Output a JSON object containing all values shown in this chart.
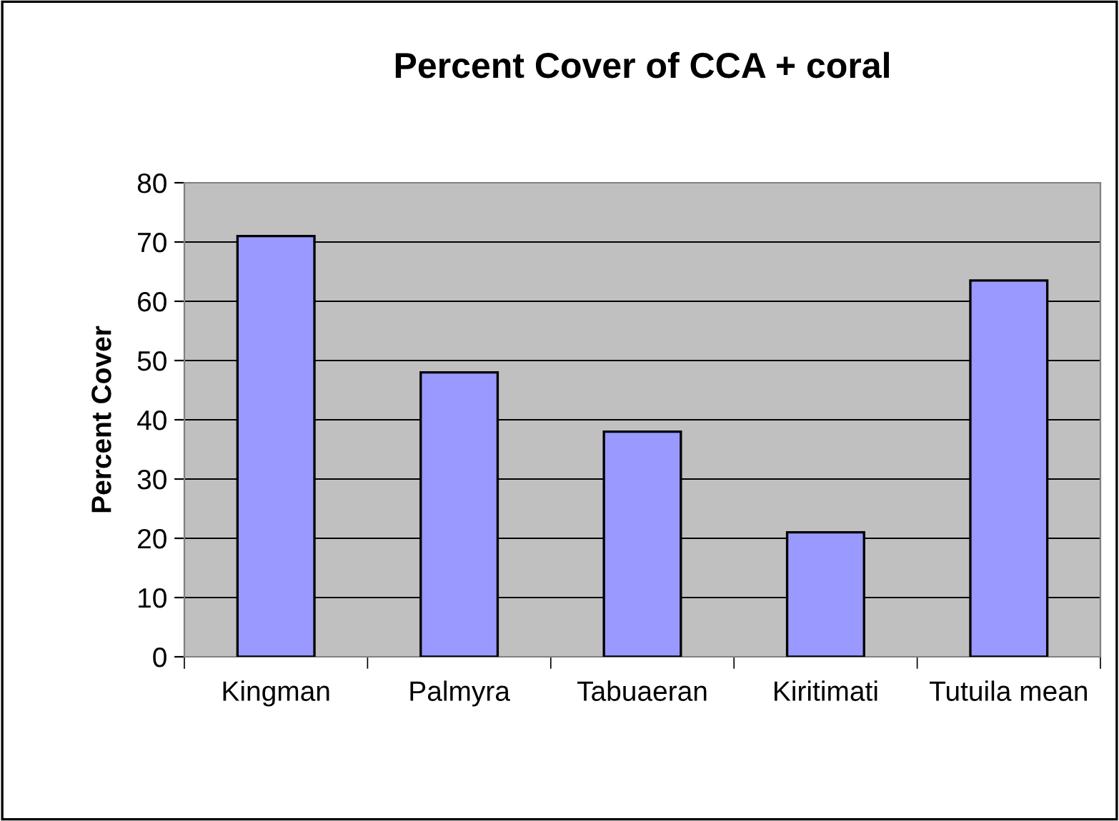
{
  "chart_data": {
    "type": "bar",
    "title": "Percent Cover of CCA + coral",
    "ylabel": "Percent Cover",
    "categories": [
      "Kingman",
      "Palmyra",
      "Tabuaeran",
      "Kiritimati",
      "Tutuila mean"
    ],
    "values": [
      71,
      48,
      38,
      21,
      63.5
    ],
    "color": "#9999ff",
    "ylim": [
      0,
      80
    ],
    "yticks": [
      0,
      10,
      20,
      30,
      40,
      50,
      60,
      70,
      80
    ],
    "grid": "y"
  }
}
